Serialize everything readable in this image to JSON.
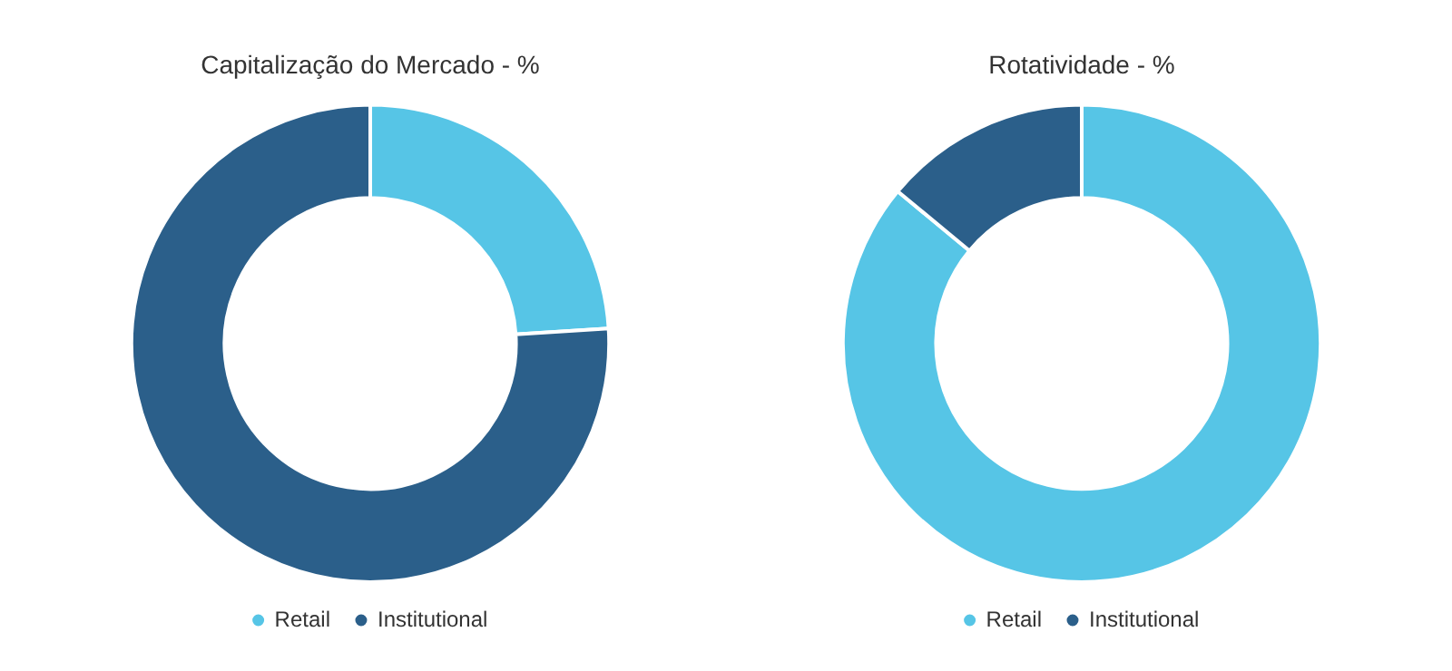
{
  "chart_data": [
    {
      "type": "donut",
      "title": "Capitalização do Mercado - %",
      "categories": [
        "Retail",
        "Institutional"
      ],
      "values": [
        24,
        76
      ],
      "colors": [
        "#56c5e6",
        "#2b5f8a"
      ],
      "legend": "bottom"
    },
    {
      "type": "donut",
      "title": "Rotatividade - %",
      "categories": [
        "Retail",
        "Institutional"
      ],
      "values": [
        86,
        14
      ],
      "colors": [
        "#56c5e6",
        "#2b5f8a"
      ],
      "legend": "bottom"
    }
  ]
}
